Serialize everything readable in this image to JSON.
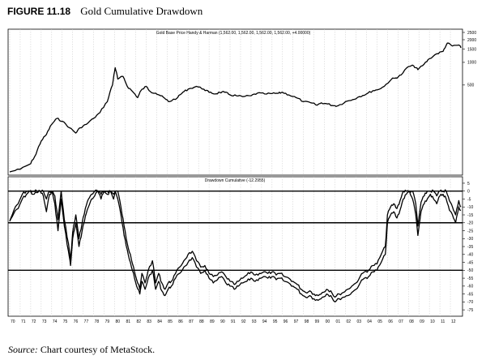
{
  "figure": {
    "label": "FIGURE 11.18",
    "title": "Gold Cumulative Drawdown",
    "source_label": "Source:",
    "source_text": " Chart courtesy of MetaStock."
  },
  "chart_data": [
    {
      "type": "line",
      "title": "Gold Base Price Handy & Harman (1,562.00, 1,562.00, 1,562.00, 1,562.00, +4.00000)",
      "series": [
        {
          "x": [
            1970.0,
            1971.0,
            1972.0,
            1972.5,
            1973.0,
            1973.5,
            1974.0,
            1974.5,
            1975.0,
            1975.7,
            1976.3,
            1976.7,
            1977.3,
            1978.0,
            1978.6,
            1979.3,
            1979.8,
            1980.05,
            1980.3,
            1980.8,
            1981.2,
            1981.7,
            1982.2,
            1982.5,
            1983.0,
            1983.4,
            1983.9,
            1984.4,
            1984.9,
            1985.2,
            1986.0,
            1986.5,
            1987.0,
            1987.8,
            1988.5,
            1989.0,
            1989.6,
            1990.0,
            1990.5,
            1991.0,
            1991.6,
            1992.2,
            1993.0,
            1993.6,
            1994.3,
            1995.0,
            1995.6,
            1996.0,
            1996.6,
            1997.3,
            1998.0,
            1998.7,
            1999.3,
            1999.7,
            2000.3,
            2000.9,
            2001.3,
            2002.0,
            2002.7,
            2003.3,
            2004.0,
            2004.6,
            2005.0,
            2005.7,
            2006.4,
            2006.8,
            2007.3,
            2008.0,
            2008.5,
            2008.9,
            2009.5,
            2010.0,
            2010.7,
            2011.3,
            2011.7,
            2012.2,
            2012.8,
            2013.0
          ],
          "values": [
            35,
            38,
            45,
            60,
            90,
            110,
            150,
            180,
            165,
            135,
            115,
            135,
            150,
            180,
            215,
            300,
            500,
            850,
            600,
            650,
            480,
            410,
            340,
            420,
            480,
            410,
            390,
            360,
            320,
            300,
            340,
            400,
            440,
            480,
            440,
            400,
            380,
            400,
            400,
            370,
            360,
            350,
            360,
            390,
            380,
            385,
            388,
            400,
            370,
            340,
            300,
            290,
            270,
            290,
            280,
            265,
            265,
            300,
            320,
            350,
            380,
            420,
            430,
            480,
            600,
            620,
            680,
            880,
            900,
            800,
            950,
            1120,
            1300,
            1400,
            1800,
            1650,
            1700,
            1562
          ]
        }
      ],
      "ylim": [
        35,
        2500
      ],
      "log_scale": true,
      "y_ticks": [
        2500,
        2000,
        1500,
        1000,
        500
      ],
      "grid": true
    },
    {
      "type": "line",
      "title": "Drawdown Cumulative (-12.2955)",
      "series": [
        {
          "x": [
            1970.0,
            1970.4,
            1970.8,
            1971.2,
            1971.6,
            1971.9,
            1972.2,
            1972.6,
            1972.9,
            1973.2,
            1973.5,
            1973.8,
            1974.0,
            1974.3,
            1974.6,
            1974.9,
            1975.2,
            1975.6,
            1975.8,
            1976.0,
            1976.3,
            1976.6,
            1976.9,
            1977.2,
            1977.5,
            1977.8,
            1978.1,
            1978.4,
            1978.7,
            1979.0,
            1979.3,
            1979.6,
            1979.9,
            1980.05,
            1980.3,
            1980.6,
            1980.9,
            1981.2,
            1981.5,
            1981.8,
            1982.1,
            1982.4,
            1982.6,
            1982.9,
            1983.2,
            1983.6,
            1983.9,
            1984.2,
            1984.5,
            1984.8,
            1985.1,
            1985.4,
            1985.8,
            1986.2,
            1986.6,
            1987.0,
            1987.4,
            1987.8,
            1988.2,
            1988.6,
            1989.0,
            1989.4,
            1989.8,
            1990.2,
            1990.6,
            1991.0,
            1991.4,
            1991.8,
            1992.2,
            1992.6,
            1993.0,
            1993.4,
            1993.8,
            1994.2,
            1994.6,
            1995.0,
            1995.4,
            1995.8,
            1996.2,
            1996.6,
            1997.0,
            1997.4,
            1997.8,
            1998.2,
            1998.6,
            1999.0,
            1999.4,
            1999.8,
            2000.2,
            2000.6,
            2001.0,
            2001.4,
            2001.8,
            2002.2,
            2002.6,
            2003.0,
            2003.4,
            2003.8,
            2004.2,
            2004.6,
            2005.0,
            2005.4,
            2005.8,
            2006.0,
            2006.3,
            2006.6,
            2006.9,
            2007.2,
            2007.5,
            2007.8,
            2008.1,
            2008.4,
            2008.7,
            2008.9,
            2009.2,
            2009.5,
            2009.8,
            2010.1,
            2010.4,
            2010.7,
            2011.0,
            2011.3,
            2011.6,
            2011.9,
            2012.2,
            2012.5,
            2012.8,
            2013.0
          ],
          "values": [
            -19,
            -14,
            -11,
            -5,
            -2,
            0,
            -2,
            -1,
            0,
            -3,
            -13,
            -2,
            0,
            -8,
            -25,
            -5,
            -22,
            -38,
            -47,
            -30,
            -20,
            -35,
            -25,
            -16,
            -10,
            -5,
            -3,
            0,
            -5,
            0,
            -2,
            0,
            -5,
            0,
            -5,
            -15,
            -28,
            -37,
            -45,
            -52,
            -60,
            -65,
            -57,
            -62,
            -55,
            -50,
            -62,
            -57,
            -63,
            -66,
            -62,
            -60,
            -55,
            -52,
            -48,
            -45,
            -42,
            -48,
            -52,
            -50,
            -55,
            -58,
            -56,
            -54,
            -58,
            -60,
            -62,
            -60,
            -58,
            -57,
            -55,
            -57,
            -55,
            -54,
            -55,
            -54,
            -56,
            -55,
            -57,
            -58,
            -60,
            -62,
            -65,
            -67,
            -66,
            -68,
            -69,
            -67,
            -65,
            -66,
            -70,
            -68,
            -67,
            -66,
            -64,
            -62,
            -58,
            -55,
            -54,
            -51,
            -50,
            -45,
            -40,
            -20,
            -15,
            -13,
            -17,
            -12,
            -5,
            -2,
            0,
            -5,
            -15,
            -28,
            -13,
            -8,
            -5,
            -2,
            -5,
            -8,
            -3,
            -2,
            -5,
            -12,
            -15,
            -20,
            -10,
            -12
          ],
          "secondary_values": [
            -19,
            -12,
            -8,
            -2,
            0,
            0,
            0,
            0,
            0,
            0,
            -5,
            0,
            0,
            -3,
            -18,
            0,
            -18,
            -33,
            -44,
            -26,
            -15,
            -30,
            -20,
            -11,
            -5,
            -2,
            0,
            0,
            -2,
            0,
            0,
            0,
            -2,
            0,
            0,
            -10,
            -22,
            -33,
            -40,
            -48,
            -56,
            -62,
            -52,
            -58,
            -50,
            -44,
            -58,
            -52,
            -58,
            -62,
            -58,
            -57,
            -52,
            -48,
            -44,
            -40,
            -38,
            -44,
            -48,
            -47,
            -52,
            -54,
            -53,
            -51,
            -54,
            -57,
            -59,
            -57,
            -55,
            -53,
            -51,
            -53,
            -52,
            -51,
            -52,
            -51,
            -53,
            -52,
            -54,
            -55,
            -57,
            -59,
            -62,
            -64,
            -63,
            -65,
            -66,
            -64,
            -62,
            -63,
            -67,
            -65,
            -64,
            -62,
            -60,
            -58,
            -54,
            -51,
            -50,
            -47,
            -46,
            -40,
            -35,
            -15,
            -10,
            -8,
            -11,
            -6,
            0,
            0,
            0,
            0,
            -8,
            -22,
            -7,
            -3,
            0,
            0,
            0,
            -3,
            0,
            0,
            0,
            -6,
            -10,
            -15,
            -6,
            -10
          ]
        }
      ],
      "ylim": [
        -78,
        6
      ],
      "y_ticks": [
        5,
        0,
        -5,
        -10,
        -15,
        -20,
        -25,
        -30,
        -35,
        -40,
        -45,
        -50,
        -55,
        -60,
        -65,
        -70,
        -75
      ],
      "reference_lines": [
        0,
        -20,
        -50
      ],
      "x_tick_labels": [
        "70",
        "71",
        "72",
        "73",
        "74",
        "75",
        "76",
        "77",
        "78",
        "79",
        "80",
        "81",
        "82",
        "83",
        "84",
        "85",
        "86",
        "87",
        "88",
        "89",
        "90",
        "91",
        "92",
        "93",
        "94",
        "95",
        "96",
        "97",
        "98",
        "99",
        "00",
        "01",
        "02",
        "03",
        "04",
        "05",
        "06",
        "07",
        "08",
        "09",
        "10",
        "11",
        "12"
      ],
      "grid": true
    }
  ]
}
